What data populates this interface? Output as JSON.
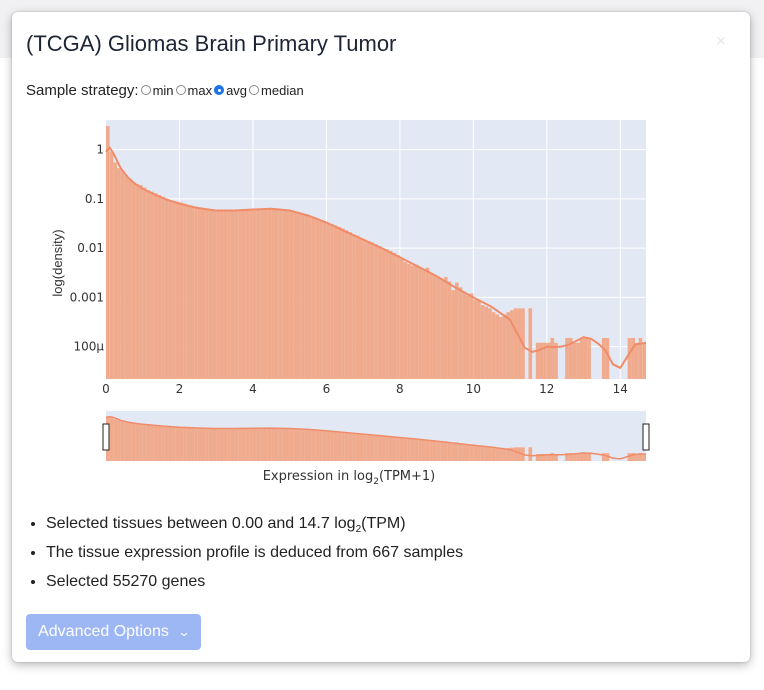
{
  "modal": {
    "title": "(TCGA) Gliomas Brain Primary Tumor"
  },
  "sample_strategy": {
    "label": "Sample strategy:",
    "options": [
      "min",
      "max",
      "avg",
      "median"
    ],
    "selected": "avg"
  },
  "summary": {
    "tissues_prefix": "Selected tissues between 0.00 and 14.7 log",
    "tissues_sub": "2",
    "tissues_suffix": "(TPM)",
    "samples": "The tissue expression profile is deduced from 667 samples",
    "genes": "Selected 55270 genes"
  },
  "advanced_button": {
    "label": "Advanced Options"
  },
  "colors": {
    "bar": "#f0ab8e",
    "line": "#ef8c6a",
    "plot_bg": "#e3e9f4",
    "accent": "#1a73e8",
    "button": "#9db6f4"
  },
  "chart_data": {
    "type": "bar",
    "ylabel": "log(density)",
    "xlabel_main": "Expression in log",
    "xlabel_sub": "2",
    "xlabel_tail": "(TPM+1)",
    "x_ticks": [
      "0",
      "2",
      "4",
      "6",
      "8",
      "10",
      "12",
      "14"
    ],
    "x_tick_values": [
      0,
      2,
      4,
      6,
      8,
      10,
      12,
      14
    ],
    "y_ticks": [
      "1",
      "0.1",
      "0.01",
      "0.001",
      "100µ"
    ],
    "y_tick_values": [
      1,
      0.1,
      0.01,
      0.001,
      0.0001
    ],
    "xlim": [
      0,
      14.7
    ],
    "ylim": [
      2.2e-05,
      4
    ],
    "log_y": true,
    "grid": true,
    "range_slider": {
      "min": 0,
      "max": 14.7
    },
    "kde_curve": {
      "x": [
        0,
        0.1,
        0.2,
        0.3,
        0.4,
        0.6,
        0.8,
        1.0,
        1.3,
        1.6,
        2.0,
        2.5,
        3.0,
        3.5,
        4.0,
        4.5,
        5.0,
        5.5,
        6.0,
        6.5,
        7.0,
        7.5,
        8.0,
        8.5,
        9.0,
        9.5,
        10.0,
        10.5,
        11.0,
        11.2,
        11.4,
        11.6,
        11.8,
        12.0,
        12.2,
        12.4,
        12.6,
        12.8,
        13.0,
        13.2,
        13.4,
        13.6,
        13.8,
        14.0,
        14.2,
        14.4,
        14.7
      ],
      "y": [
        0.9,
        1.1,
        0.85,
        0.6,
        0.42,
        0.27,
        0.2,
        0.16,
        0.125,
        0.1,
        0.08,
        0.065,
        0.058,
        0.058,
        0.061,
        0.063,
        0.058,
        0.046,
        0.033,
        0.022,
        0.015,
        0.01,
        0.0065,
        0.0042,
        0.0027,
        0.0016,
        0.001,
        0.00064,
        0.00035,
        0.00018,
        9.5e-05,
        7.8e-05,
        8.5e-05,
        0.0001,
        9.8e-05,
        0.0001,
        0.00011,
        0.00013,
        0.000155,
        0.000145,
        0.000115,
        8.3e-05,
        4.4e-05,
        3.7e-05,
        6.4e-05,
        0.00011,
        0.00012
      ]
    },
    "bars": {
      "x": [
        0.05,
        0.15,
        0.25,
        0.35,
        0.45,
        0.55,
        0.65,
        0.75,
        0.85,
        0.95,
        1.05,
        1.15,
        1.25,
        1.35,
        1.45,
        1.55,
        1.65,
        1.75,
        1.85,
        1.95,
        2.05,
        2.15,
        2.25,
        2.35,
        2.45,
        2.55,
        2.65,
        2.75,
        2.85,
        2.95,
        3.05,
        3.15,
        3.25,
        3.35,
        3.45,
        3.55,
        3.65,
        3.75,
        3.85,
        3.95,
        4.05,
        4.15,
        4.25,
        4.35,
        4.45,
        4.55,
        4.65,
        4.75,
        4.85,
        4.95,
        5.05,
        5.15,
        5.25,
        5.35,
        5.45,
        5.55,
        5.65,
        5.75,
        5.85,
        5.95,
        6.05,
        6.15,
        6.25,
        6.35,
        6.45,
        6.55,
        6.65,
        6.75,
        6.85,
        6.95,
        7.05,
        7.15,
        7.25,
        7.35,
        7.45,
        7.55,
        7.65,
        7.75,
        7.85,
        7.95,
        8.05,
        8.15,
        8.25,
        8.35,
        8.45,
        8.55,
        8.65,
        8.75,
        8.85,
        8.95,
        9.05,
        9.15,
        9.25,
        9.35,
        9.45,
        9.55,
        9.65,
        9.75,
        9.85,
        9.95,
        10.05,
        10.15,
        10.25,
        10.35,
        10.45,
        10.55,
        10.65,
        10.75,
        10.85,
        10.95,
        11.05,
        11.15,
        11.25,
        11.35,
        11.55,
        11.75,
        11.85,
        11.95,
        12.05,
        12.15,
        12.25,
        12.55,
        12.65,
        12.75,
        12.85,
        12.95,
        13.05,
        13.15,
        13.55,
        13.65,
        14.25,
        14.35,
        14.45,
        14.55,
        14.65
      ],
      "values": [
        3.0,
        0.9,
        0.55,
        0.42,
        0.38,
        0.3,
        0.26,
        0.22,
        0.2,
        0.19,
        0.17,
        0.15,
        0.14,
        0.13,
        0.12,
        0.11,
        0.1,
        0.095,
        0.09,
        0.088,
        0.084,
        0.08,
        0.075,
        0.072,
        0.07,
        0.068,
        0.066,
        0.064,
        0.062,
        0.06,
        0.059,
        0.058,
        0.058,
        0.057,
        0.057,
        0.058,
        0.058,
        0.059,
        0.06,
        0.061,
        0.062,
        0.062,
        0.063,
        0.063,
        0.064,
        0.063,
        0.062,
        0.061,
        0.06,
        0.058,
        0.057,
        0.055,
        0.053,
        0.05,
        0.048,
        0.045,
        0.043,
        0.04,
        0.037,
        0.035,
        0.033,
        0.031,
        0.029,
        0.027,
        0.025,
        0.023,
        0.021,
        0.019,
        0.018,
        0.016,
        0.015,
        0.014,
        0.013,
        0.012,
        0.011,
        0.01,
        0.0095,
        0.0088,
        0.008,
        0.0072,
        0.006,
        0.0052,
        0.0048,
        0.0044,
        0.0046,
        0.004,
        0.0035,
        0.004,
        0.003,
        0.0028,
        0.0025,
        0.0023,
        0.0026,
        0.0021,
        0.0014,
        0.002,
        0.0016,
        0.0013,
        0.0011,
        0.0012,
        0.0009,
        0.00085,
        0.0007,
        0.00065,
        0.0006,
        0.0005,
        0.00045,
        0.0004,
        0.00045,
        0.0005,
        0.00055,
        0.0006,
        0.0006,
        0.0006,
        0.0006,
        0.00012,
        0.00012,
        0.00012,
        0.00012,
        0.00015,
        0.00012,
        0.00015,
        0.00015,
        0.00012,
        0.00012,
        0.00015,
        0.00015,
        0.00015,
        0.00015,
        0.00015,
        0.00015,
        0.00015,
        0.00012,
        0.00015,
        0.00012
      ]
    }
  }
}
